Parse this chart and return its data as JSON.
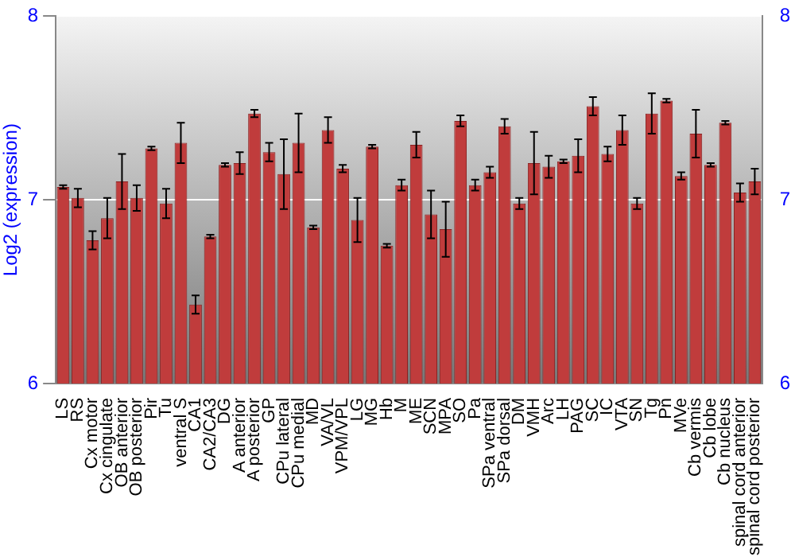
{
  "chart_data": {
    "type": "bar",
    "ylabel": "Log2 (expression)",
    "categories": [
      "LS",
      "RS",
      "Cx motor",
      "Cx cingulate",
      "OB anterior",
      "OB posterior",
      "Pir",
      "Tu",
      "ventral S",
      "CA1",
      "CA2/CA3",
      "DG",
      "A anterior",
      "A posterior",
      "GP",
      "CPu lateral",
      "CPu medial",
      "MD",
      "VA/VL",
      "VPM/VPL",
      "LG",
      "MG",
      "Hb",
      "M",
      "ME",
      "SCN",
      "MPA",
      "SO",
      "Pa",
      "SPa ventral",
      "SPa dorsal",
      "DM",
      "VMH",
      "Arc",
      "LH",
      "PAG",
      "SC",
      "IC",
      "VTA",
      "SN",
      "Tg",
      "Pn",
      "MVe",
      "Cb vermis",
      "Cb lobe",
      "Cb nucleus",
      "spinal cord anterior",
      "spinal cord posterior"
    ],
    "values": [
      7.07,
      7.01,
      6.78,
      6.9,
      7.1,
      7.01,
      7.28,
      6.98,
      7.31,
      6.43,
      6.8,
      7.19,
      7.2,
      7.47,
      7.26,
      7.14,
      7.31,
      6.85,
      7.38,
      7.17,
      6.89,
      7.29,
      6.75,
      7.08,
      7.3,
      6.92,
      6.84,
      7.43,
      7.08,
      7.15,
      7.4,
      6.98,
      7.2,
      7.18,
      7.21,
      7.24,
      7.51,
      7.25,
      7.38,
      6.98,
      7.47,
      7.54,
      7.13,
      7.36,
      7.19,
      7.42,
      7.04,
      7.1
    ],
    "errors": [
      0.01,
      0.05,
      0.05,
      0.11,
      0.15,
      0.07,
      0.01,
      0.08,
      0.11,
      0.05,
      0.01,
      0.01,
      0.06,
      0.02,
      0.05,
      0.19,
      0.16,
      0.01,
      0.07,
      0.02,
      0.12,
      0.01,
      0.01,
      0.03,
      0.07,
      0.13,
      0.15,
      0.03,
      0.03,
      0.03,
      0.04,
      0.03,
      0.17,
      0.06,
      0.01,
      0.09,
      0.05,
      0.04,
      0.08,
      0.03,
      0.11,
      0.01,
      0.02,
      0.13,
      0.01,
      0.01,
      0.05,
      0.07
    ],
    "color": "#c03c3c",
    "ylim": [
      6,
      8
    ],
    "yticks": [
      6,
      7,
      8
    ],
    "y2lim": [
      6,
      8
    ],
    "y2ticks": [
      6,
      7,
      8
    ],
    "grid": "y",
    "legend": false
  }
}
